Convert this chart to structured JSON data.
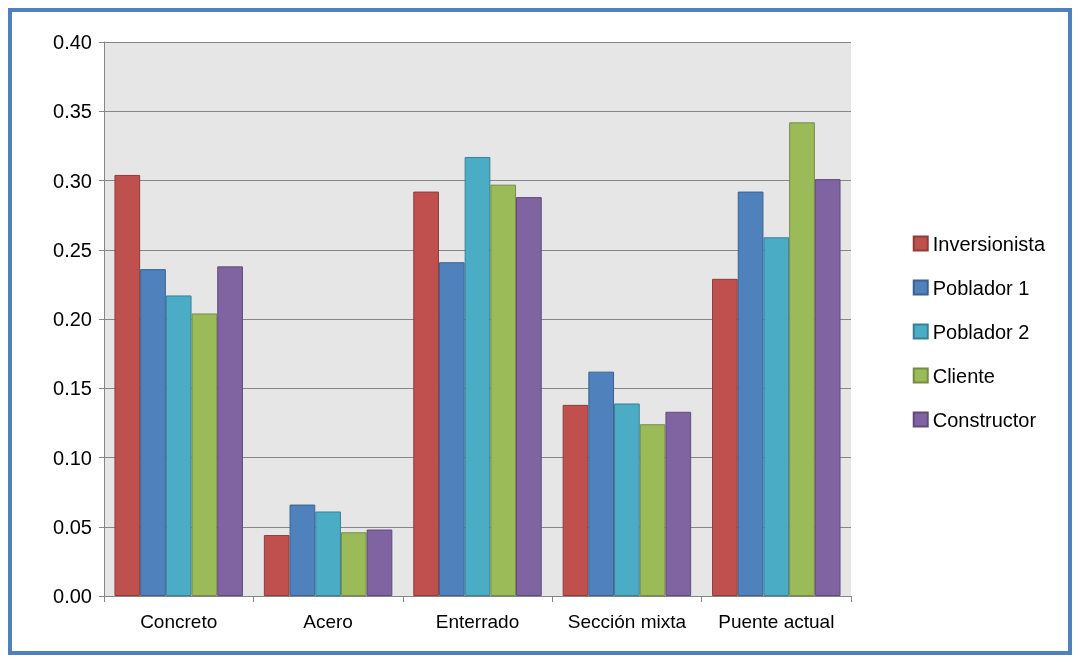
{
  "chart_data": {
    "type": "bar",
    "categories": [
      "Concreto",
      "Acero",
      "Enterrado",
      "Sección mixta",
      "Puente actual"
    ],
    "series": [
      {
        "name": "Inversionista",
        "color": "#c0504d",
        "values": [
          0.304,
          0.044,
          0.292,
          0.138,
          0.229
        ]
      },
      {
        "name": "Poblador 1",
        "color": "#4f81bd",
        "values": [
          0.236,
          0.066,
          0.241,
          0.162,
          0.292
        ]
      },
      {
        "name": "Poblador 2",
        "color": "#4bacc6",
        "values": [
          0.217,
          0.061,
          0.317,
          0.139,
          0.259
        ]
      },
      {
        "name": "Cliente",
        "color": "#9bbb59",
        "values": [
          0.204,
          0.046,
          0.297,
          0.124,
          0.342
        ]
      },
      {
        "name": "Constructor",
        "color": "#8064a2",
        "values": [
          0.238,
          0.048,
          0.288,
          0.133,
          0.301
        ]
      }
    ],
    "ylim": [
      0,
      0.4
    ],
    "yticks": [
      {
        "value": 0,
        "label": "0.00"
      },
      {
        "value": 0.05,
        "label": "0.05"
      },
      {
        "value": 0.1,
        "label": "0.10"
      },
      {
        "value": 0.15,
        "label": "0.15"
      },
      {
        "value": 0.2,
        "label": "0.20"
      },
      {
        "value": 0.25,
        "label": "0.25"
      },
      {
        "value": 0.3,
        "label": "0.30"
      },
      {
        "value": 0.35,
        "label": "0.35"
      },
      {
        "value": 0.4,
        "label": "0.40"
      }
    ],
    "grid": "y",
    "legend": "right"
  }
}
